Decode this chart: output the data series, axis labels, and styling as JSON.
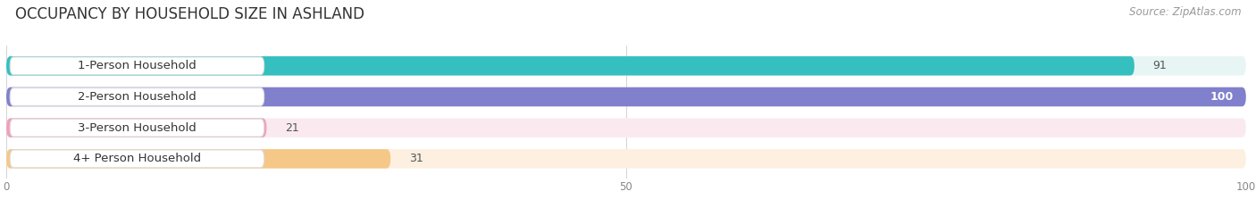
{
  "title": "OCCUPANCY BY HOUSEHOLD SIZE IN ASHLAND",
  "source": "Source: ZipAtlas.com",
  "categories": [
    "1-Person Household",
    "2-Person Household",
    "3-Person Household",
    "4+ Person Household"
  ],
  "values": [
    91,
    100,
    21,
    31
  ],
  "bar_colors": [
    "#36bfbf",
    "#8080cc",
    "#f0a0b8",
    "#f5c888"
  ],
  "bar_bg_colors": [
    "#e8f5f5",
    "#e8e8f5",
    "#faeaf0",
    "#fdf0e0"
  ],
  "xlim": [
    0,
    100
  ],
  "xticks": [
    0,
    50,
    100
  ],
  "bar_height": 0.62,
  "background_color": "#ffffff",
  "title_fontsize": 12,
  "label_fontsize": 9.5,
  "value_fontsize": 9,
  "source_fontsize": 8.5
}
